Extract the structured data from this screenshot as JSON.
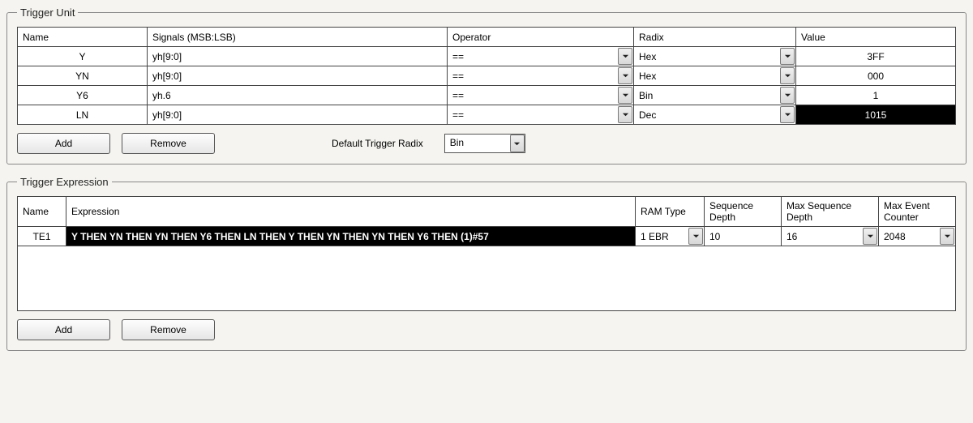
{
  "trigger_unit": {
    "legend": "Trigger Unit",
    "headers": {
      "name": "Name",
      "signals": "Signals (MSB:LSB)",
      "operator": "Operator",
      "radix": "Radix",
      "value": "Value"
    },
    "rows": [
      {
        "name": "Y",
        "signals": "yh[9:0]",
        "operator": "==",
        "radix": "Hex",
        "value": "3FF",
        "value_selected": false
      },
      {
        "name": "YN",
        "signals": "yh[9:0]",
        "operator": "==",
        "radix": "Hex",
        "value": "000",
        "value_selected": false
      },
      {
        "name": "Y6",
        "signals": "yh.6",
        "operator": "==",
        "radix": "Bin",
        "value": "1",
        "value_selected": false
      },
      {
        "name": "LN",
        "signals": "yh[9:0]",
        "operator": "==",
        "radix": "Dec",
        "value": "1015",
        "value_selected": true
      }
    ],
    "buttons": {
      "add": "Add",
      "remove": "Remove"
    },
    "default_radix_label": "Default Trigger Radix",
    "default_radix_value": "Bin"
  },
  "trigger_expression": {
    "legend": "Trigger Expression",
    "headers": {
      "name": "Name",
      "expression": "Expression",
      "ram_type": "RAM Type",
      "seq_depth": "Sequence Depth",
      "max_seq_depth": "Max Sequence Depth",
      "max_event_counter": "Max Event Counter"
    },
    "rows": [
      {
        "name": "TE1",
        "expression": "Y THEN YN THEN YN THEN Y6 THEN LN THEN Y THEN YN THEN YN THEN Y6 THEN (1)#57",
        "ram_type": "1 EBR",
        "seq_depth": "10",
        "max_seq_depth": "16",
        "max_event_counter": "2048"
      }
    ],
    "buttons": {
      "add": "Add",
      "remove": "Remove"
    }
  },
  "colors": {
    "bg": "#f5f4f0",
    "border": "#444444",
    "selected_bg": "#000000",
    "selected_fg": "#ffffff"
  }
}
